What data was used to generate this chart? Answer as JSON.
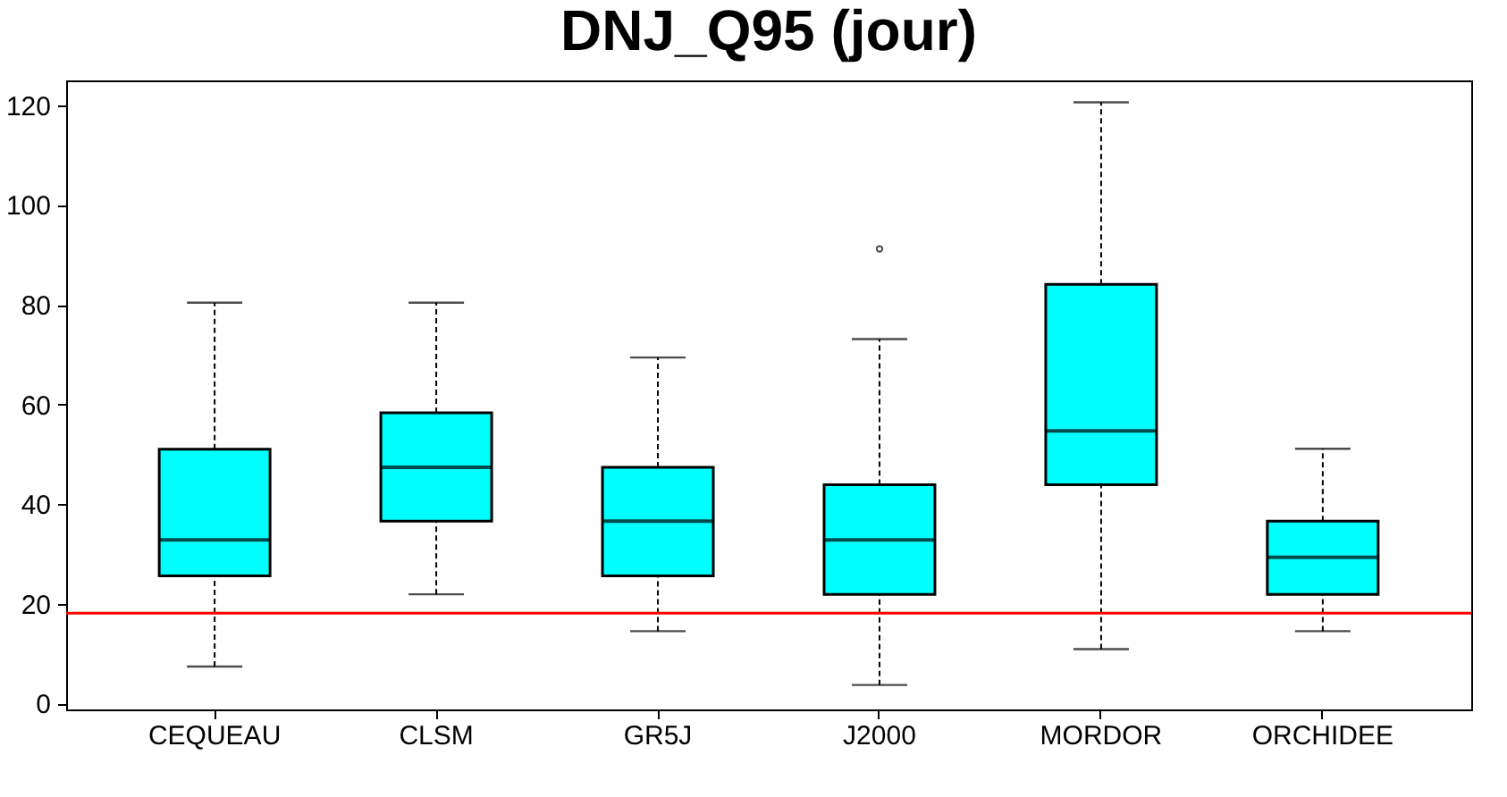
{
  "chart_data": {
    "type": "box",
    "title": "DNJ_Q95 (jour)",
    "categories": [
      "CEQUEAU",
      "CLSM",
      "GR5J",
      "J2000",
      "MORDOR",
      "ORCHIDEE"
    ],
    "series": [
      {
        "color": "#00ffff",
        "boxes": [
          {
            "low": 7.4,
            "q1": 25.6,
            "median": 32.8,
            "q3": 51.0,
            "high": 80.4
          },
          {
            "low": 21.9,
            "q1": 36.6,
            "median": 47.4,
            "q3": 58.3,
            "high": 80.4
          },
          {
            "low": 14.5,
            "q1": 25.6,
            "median": 36.6,
            "q3": 47.4,
            "high": 69.4
          },
          {
            "low": 3.7,
            "q1": 21.9,
            "median": 32.8,
            "q3": 43.9,
            "high": 73.1,
            "outliers": [
              91.2
            ]
          },
          {
            "low": 10.9,
            "q1": 43.9,
            "median": 54.7,
            "q3": 84.1,
            "high": 120.6
          },
          {
            "low": 14.5,
            "q1": 21.9,
            "median": 29.3,
            "q3": 36.6,
            "high": 51.1
          }
        ]
      }
    ],
    "ylim": [
      -1.2,
      125
    ],
    "yticks": [
      0,
      20,
      40,
      60,
      80,
      100,
      120
    ],
    "grid": false,
    "ref_lines": [
      {
        "axis": "y",
        "value": 18.1,
        "color": "#ff0000"
      }
    ]
  }
}
